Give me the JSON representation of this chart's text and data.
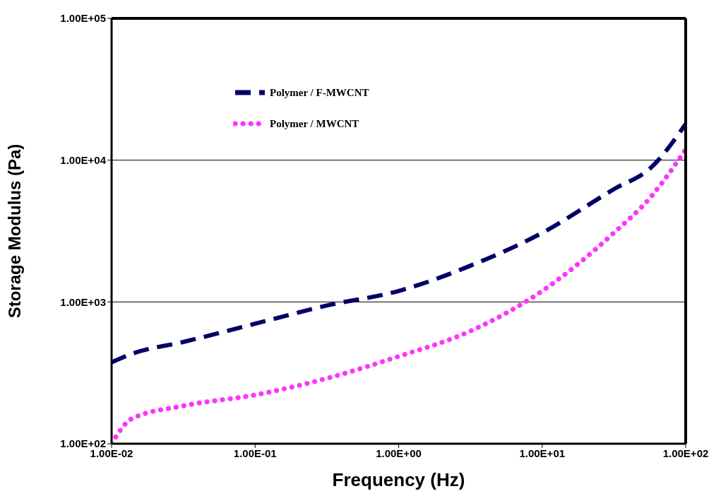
{
  "chart_data": {
    "type": "line",
    "xlabel": "Frequency (Hz)",
    "ylabel": "Storage Modulus (Pa)",
    "x": [
      0.01,
      0.0138,
      0.0316,
      0.1,
      0.316,
      1,
      3.16,
      10,
      31.6,
      57.5,
      100
    ],
    "series": [
      {
        "name": "Polymer / F-MWCNT",
        "color": "#000066",
        "line_style": "dashed",
        "values": [
          375,
          430,
          522,
          702,
          943,
          1195,
          1800,
          3070,
          6240,
          8890,
          18000
        ]
      },
      {
        "name": "Polymer / MWCNT",
        "color": "#ff33ff",
        "line_style": "dotted",
        "values": [
          100,
          150,
          185,
          221,
          289,
          413,
          623,
          1195,
          3070,
          5540,
          11900
        ]
      }
    ],
    "log": "xy",
    "xlim": [
      0.01,
      100
    ],
    "ylim": [
      100,
      100000
    ],
    "xticks": [
      {
        "value": 0.01,
        "label": "1.00E-02"
      },
      {
        "value": 0.1,
        "label": "1.00E-01"
      },
      {
        "value": 1,
        "label": "1.00E+00"
      },
      {
        "value": 10,
        "label": "1.00E+01"
      },
      {
        "value": 100,
        "label": "1.00E+02"
      }
    ],
    "yticks": [
      {
        "value": 100,
        "label": "1.00E+02"
      },
      {
        "value": 1000,
        "label": "1.00E+03"
      },
      {
        "value": 10000,
        "label": "1.00E+04"
      },
      {
        "value": 100000,
        "label": "1.00E+05"
      }
    ],
    "grid": "y",
    "legend": "top left",
    "marker": "none"
  }
}
